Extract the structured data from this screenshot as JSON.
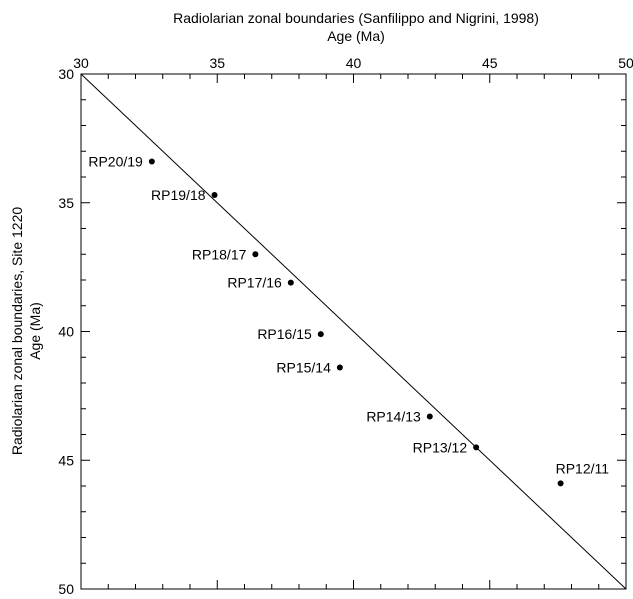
{
  "chart_data": {
    "type": "scatter",
    "title": "Radiolarian zonal boundaries (Sanfilippo and Nigrini, 1998)",
    "xlabel": "Age (Ma)",
    "ylabel_line1": "Radiolarian zonal boundaries, Site 1220",
    "ylabel_line2": "Age (Ma)",
    "xlim": [
      30,
      50
    ],
    "ylim": [
      30,
      50
    ],
    "x_axis_position": "top",
    "y_inverted": true,
    "x_ticks": [
      "30",
      "35",
      "40",
      "45",
      "50"
    ],
    "y_ticks": [
      "30",
      "35",
      "40",
      "45",
      "50"
    ],
    "reference_line": "1:1",
    "grid": false,
    "points": [
      {
        "label": "RP20/19",
        "x": 32.6,
        "y": 33.4,
        "label_side": "left"
      },
      {
        "label": "RP19/18",
        "x": 34.9,
        "y": 34.7,
        "label_side": "left"
      },
      {
        "label": "RP18/17",
        "x": 36.4,
        "y": 37.0,
        "label_side": "left"
      },
      {
        "label": "RP17/16",
        "x": 37.7,
        "y": 38.1,
        "label_side": "left"
      },
      {
        "label": "RP16/15",
        "x": 38.8,
        "y": 40.1,
        "label_side": "left"
      },
      {
        "label": "RP15/14",
        "x": 39.5,
        "y": 41.4,
        "label_side": "left"
      },
      {
        "label": "RP14/13",
        "x": 42.8,
        "y": 43.3,
        "label_side": "left"
      },
      {
        "label": "RP13/12",
        "x": 44.5,
        "y": 44.5,
        "label_side": "left"
      },
      {
        "label": "RP12/11",
        "x": 47.6,
        "y": 45.9,
        "label_side": "above"
      }
    ]
  }
}
